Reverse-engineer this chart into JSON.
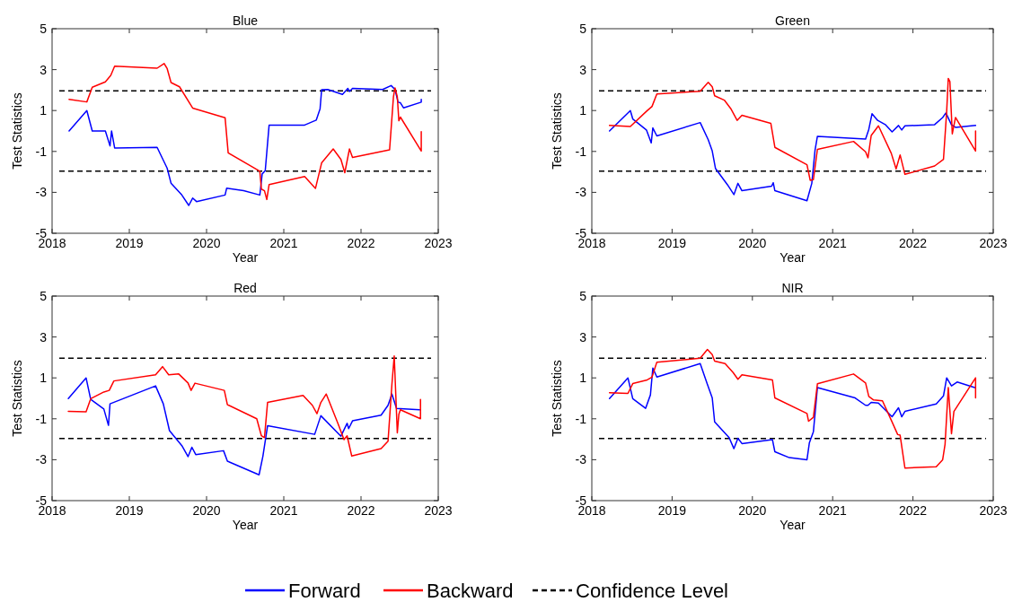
{
  "chart_data": [
    {
      "type": "line",
      "title": "Blue",
      "xlabel": "Year",
      "ylabel": "Test Statistics",
      "xlim": [
        2018,
        2023
      ],
      "xticks": [
        2018,
        2019,
        2020,
        2021,
        2022,
        2023
      ],
      "ylim": [
        -5,
        5
      ],
      "yticks": [
        -5,
        -3,
        -1,
        1,
        3,
        5
      ],
      "legend": "bottom",
      "line_style": "solid",
      "ref_lines": [
        {
          "axis": "y",
          "value": 1.96,
          "label": "Confidence Level",
          "line_style": "dashed",
          "color": "#000000"
        },
        {
          "axis": "y",
          "value": -1.96,
          "line_style": "dashed",
          "color": "#000000"
        }
      ],
      "series": [
        {
          "name": "Forward",
          "color": "#0000ff",
          "x": [
            2018.22,
            2018.45,
            2018.52,
            2018.69,
            2018.75,
            2018.77,
            2018.81,
            2019.36,
            2019.49,
            2019.54,
            2019.68,
            2019.77,
            2019.82,
            2019.87,
            2020.24,
            2020.26,
            2020.48,
            2020.69,
            2020.72,
            2020.76,
            2020.81,
            2021.27,
            2021.42,
            2021.47,
            2021.49,
            2021.57,
            2021.76,
            2021.83,
            2021.85,
            2021.89,
            2022.28,
            2022.39,
            2022.44,
            2022.48,
            2022.51,
            2022.55,
            2022.78,
            2022.78
          ],
          "values": [
            0.0,
            1.0,
            0.0,
            0.0,
            -0.73,
            0.0,
            -0.83,
            -0.8,
            -1.82,
            -2.55,
            -3.13,
            -3.64,
            -3.28,
            -3.45,
            -3.13,
            -2.8,
            -2.92,
            -3.13,
            -2.1,
            -1.94,
            0.29,
            0.29,
            0.53,
            1.09,
            2.02,
            2.03,
            1.79,
            2.08,
            1.93,
            2.08,
            2.03,
            2.22,
            2.03,
            1.41,
            1.38,
            1.13,
            1.41,
            1.55
          ]
        },
        {
          "name": "Backward",
          "color": "#ff0000",
          "x": [
            2018.22,
            2018.45,
            2018.52,
            2018.69,
            2018.76,
            2018.81,
            2019.36,
            2019.45,
            2019.49,
            2019.54,
            2019.65,
            2019.82,
            2020.24,
            2020.28,
            2020.69,
            2020.71,
            2020.75,
            2020.78,
            2020.81,
            2021.27,
            2021.41,
            2021.49,
            2021.64,
            2021.74,
            2021.79,
            2021.85,
            2021.89,
            2022.37,
            2022.42,
            2022.44,
            2022.47,
            2022.49,
            2022.51,
            2022.78,
            2022.78
          ],
          "values": [
            1.55,
            1.42,
            2.14,
            2.4,
            2.72,
            3.17,
            3.07,
            3.3,
            3.05,
            2.37,
            2.16,
            1.12,
            0.65,
            -1.07,
            -1.97,
            -2.84,
            -2.92,
            -3.35,
            -2.62,
            -2.23,
            -2.81,
            -1.56,
            -0.88,
            -1.39,
            -2.04,
            -0.88,
            -1.29,
            -0.92,
            1.67,
            2.11,
            1.67,
            0.5,
            0.68,
            -0.98,
            -0.03
          ]
        }
      ]
    },
    {
      "type": "line",
      "title": "Green",
      "xlabel": "Year",
      "ylabel": "Test Statistics",
      "xlim": [
        2018,
        2023
      ],
      "xticks": [
        2018,
        2019,
        2020,
        2021,
        2022,
        2023
      ],
      "ylim": [
        -5,
        5
      ],
      "yticks": [
        -5,
        -3,
        -1,
        1,
        3,
        5
      ],
      "line_style": "solid",
      "ref_lines": [
        {
          "axis": "y",
          "value": 1.96,
          "line_style": "dashed",
          "color": "#000000"
        },
        {
          "axis": "y",
          "value": -1.96,
          "line_style": "dashed",
          "color": "#000000"
        }
      ],
      "series": [
        {
          "name": "Forward",
          "color": "#0000ff",
          "x": [
            2018.22,
            2018.48,
            2018.51,
            2018.68,
            2018.74,
            2018.76,
            2018.81,
            2019.35,
            2019.45,
            2019.5,
            2019.54,
            2019.69,
            2019.77,
            2019.82,
            2019.87,
            2020.24,
            2020.26,
            2020.28,
            2020.68,
            2020.74,
            2020.78,
            2020.81,
            2021.41,
            2021.45,
            2021.49,
            2021.56,
            2021.66,
            2021.74,
            2021.82,
            2021.86,
            2021.9,
            2022.27,
            2022.37,
            2022.41,
            2022.48,
            2022.53,
            2022.78
          ],
          "values": [
            0.0,
            1.0,
            0.59,
            0.05,
            -0.58,
            0.15,
            -0.24,
            0.41,
            -0.43,
            -0.98,
            -1.83,
            -2.63,
            -3.11,
            -2.56,
            -2.92,
            -2.7,
            -2.53,
            -2.92,
            -3.41,
            -2.56,
            -0.95,
            -0.26,
            -0.39,
            0.08,
            0.84,
            0.52,
            0.3,
            -0.04,
            0.27,
            0.05,
            0.25,
            0.31,
            0.66,
            0.88,
            0.3,
            0.18,
            0.27
          ]
        },
        {
          "name": "Backward",
          "color": "#ff0000",
          "x": [
            2018.22,
            2018.48,
            2018.68,
            2018.75,
            2018.81,
            2019.35,
            2019.45,
            2019.5,
            2019.53,
            2019.65,
            2019.73,
            2019.81,
            2019.87,
            2020.23,
            2020.28,
            2020.68,
            2020.72,
            2020.76,
            2020.81,
            2021.26,
            2021.41,
            2021.44,
            2021.48,
            2021.57,
            2021.73,
            2021.79,
            2021.84,
            2021.9,
            2022.27,
            2022.38,
            2022.42,
            2022.44,
            2022.46,
            2022.49,
            2022.53,
            2022.78,
            2022.78
          ],
          "values": [
            0.27,
            0.22,
            0.96,
            1.2,
            1.81,
            1.94,
            2.38,
            2.16,
            1.72,
            1.51,
            1.1,
            0.52,
            0.77,
            0.37,
            -0.8,
            -1.65,
            -2.41,
            -2.38,
            -0.9,
            -0.51,
            -1.02,
            -1.31,
            -0.22,
            0.25,
            -1.09,
            -1.85,
            -1.17,
            -2.12,
            -1.71,
            -1.39,
            0.96,
            2.57,
            2.42,
            -0.14,
            0.66,
            -0.98,
            0.0
          ]
        }
      ]
    },
    {
      "type": "line",
      "title": "Red",
      "xlabel": "Year",
      "ylabel": "Test Statistics",
      "xlim": [
        2018,
        2023
      ],
      "xticks": [
        2018,
        2019,
        2020,
        2021,
        2022,
        2023
      ],
      "ylim": [
        -5,
        5
      ],
      "yticks": [
        -5,
        -3,
        -1,
        1,
        3,
        5
      ],
      "line_style": "solid",
      "ref_lines": [
        {
          "axis": "y",
          "value": 1.96,
          "line_style": "dashed",
          "color": "#000000"
        },
        {
          "axis": "y",
          "value": -1.96,
          "line_style": "dashed",
          "color": "#000000"
        }
      ],
      "series": [
        {
          "name": "Forward",
          "color": "#0000ff",
          "x": [
            2018.21,
            2018.44,
            2018.5,
            2018.67,
            2018.73,
            2018.75,
            2019.34,
            2019.44,
            2019.52,
            2019.68,
            2019.76,
            2019.81,
            2019.86,
            2020.22,
            2020.27,
            2020.68,
            2020.73,
            2020.79,
            2021.4,
            2021.48,
            2021.74,
            2021.82,
            2021.84,
            2021.89,
            2022.26,
            2022.35,
            2022.4,
            2022.46,
            2022.76
          ],
          "values": [
            -0.01,
            1.0,
            -0.05,
            -0.52,
            -1.32,
            -0.27,
            0.61,
            -0.27,
            -1.58,
            -2.31,
            -2.85,
            -2.39,
            -2.75,
            -2.56,
            -3.07,
            -3.74,
            -2.82,
            -1.34,
            -1.76,
            -0.85,
            -1.85,
            -1.22,
            -1.48,
            -1.1,
            -0.82,
            -0.34,
            0.21,
            -0.49,
            -0.56
          ]
        },
        {
          "name": "Backward",
          "color": "#ff0000",
          "x": [
            2018.21,
            2018.44,
            2018.5,
            2018.67,
            2018.74,
            2018.8,
            2019.34,
            2019.43,
            2019.51,
            2019.64,
            2019.76,
            2019.8,
            2019.85,
            2020.23,
            2020.27,
            2020.65,
            2020.71,
            2020.75,
            2020.79,
            2021.25,
            2021.37,
            2021.43,
            2021.48,
            2021.55,
            2021.7,
            2021.78,
            2021.82,
            2021.88,
            2022.26,
            2022.35,
            2022.4,
            2022.43,
            2022.47,
            2022.49,
            2022.51,
            2022.77,
            2022.77
          ],
          "values": [
            -0.64,
            -0.66,
            -0.02,
            0.31,
            0.39,
            0.85,
            1.15,
            1.55,
            1.15,
            1.19,
            0.75,
            0.39,
            0.74,
            0.39,
            -0.31,
            -1.0,
            -1.83,
            -1.92,
            -0.2,
            0.14,
            -0.34,
            -0.75,
            -0.2,
            0.21,
            -1.22,
            -2.02,
            -1.83,
            -2.82,
            -2.46,
            -2.09,
            0.68,
            2.07,
            -1.69,
            -0.78,
            -0.56,
            -1.0,
            -0.05
          ]
        }
      ]
    },
    {
      "type": "line",
      "title": "NIR",
      "xlabel": "Year",
      "ylabel": "Test Statistics",
      "xlim": [
        2018,
        2023
      ],
      "xticks": [
        2018,
        2019,
        2020,
        2021,
        2022,
        2023
      ],
      "ylim": [
        -5,
        5
      ],
      "yticks": [
        -5,
        -3,
        -1,
        1,
        3,
        5
      ],
      "line_style": "solid",
      "ref_lines": [
        {
          "axis": "y",
          "value": 1.96,
          "line_style": "dashed",
          "color": "#000000"
        },
        {
          "axis": "y",
          "value": -1.96,
          "line_style": "dashed",
          "color": "#000000"
        }
      ],
      "series": [
        {
          "name": "Forward",
          "color": "#0000ff",
          "x": [
            2018.22,
            2018.45,
            2018.51,
            2018.67,
            2018.73,
            2018.76,
            2018.81,
            2019.35,
            2019.44,
            2019.5,
            2019.53,
            2019.71,
            2019.77,
            2019.82,
            2019.87,
            2020.25,
            2020.28,
            2020.46,
            2020.68,
            2020.71,
            2020.76,
            2020.81,
            2021.28,
            2021.41,
            2021.44,
            2021.48,
            2021.57,
            2021.74,
            2021.82,
            2021.86,
            2021.9,
            2022.29,
            2022.38,
            2022.42,
            2022.48,
            2022.55,
            2022.77
          ],
          "values": [
            -0.01,
            1.0,
            -0.02,
            -0.49,
            0.17,
            1.48,
            1.04,
            1.7,
            0.68,
            0.02,
            -1.15,
            -1.92,
            -2.46,
            -1.95,
            -2.21,
            -2.02,
            -2.61,
            -2.9,
            -3.0,
            -2.17,
            -1.63,
            0.53,
            0.02,
            -0.34,
            -0.34,
            -0.2,
            -0.23,
            -0.9,
            -0.46,
            -0.9,
            -0.64,
            -0.27,
            0.12,
            1.0,
            0.61,
            0.8,
            0.53
          ]
        },
        {
          "name": "Backward",
          "color": "#ff0000",
          "x": [
            2018.22,
            2018.45,
            2018.51,
            2018.69,
            2018.75,
            2018.81,
            2019.35,
            2019.44,
            2019.5,
            2019.53,
            2019.66,
            2019.76,
            2019.82,
            2019.87,
            2020.25,
            2020.28,
            2020.68,
            2020.7,
            2020.76,
            2020.81,
            2021.26,
            2021.41,
            2021.45,
            2021.51,
            2021.62,
            2021.73,
            2021.81,
            2021.84,
            2021.9,
            2022.29,
            2022.37,
            2022.4,
            2022.44,
            2022.48,
            2022.51,
            2022.78,
            2022.78
          ],
          "values": [
            0.27,
            0.24,
            0.72,
            0.9,
            1.04,
            1.77,
            1.96,
            2.39,
            2.14,
            1.82,
            1.7,
            1.26,
            0.93,
            1.15,
            0.9,
            0.02,
            -0.74,
            -1.12,
            -0.93,
            0.71,
            1.19,
            0.75,
            0.09,
            -0.08,
            -0.12,
            -1.07,
            -1.77,
            -1.8,
            -3.41,
            -3.34,
            -3.0,
            -2.24,
            0.53,
            -1.73,
            -0.64,
            1.0,
            0.02
          ]
        }
      ]
    }
  ]
}
